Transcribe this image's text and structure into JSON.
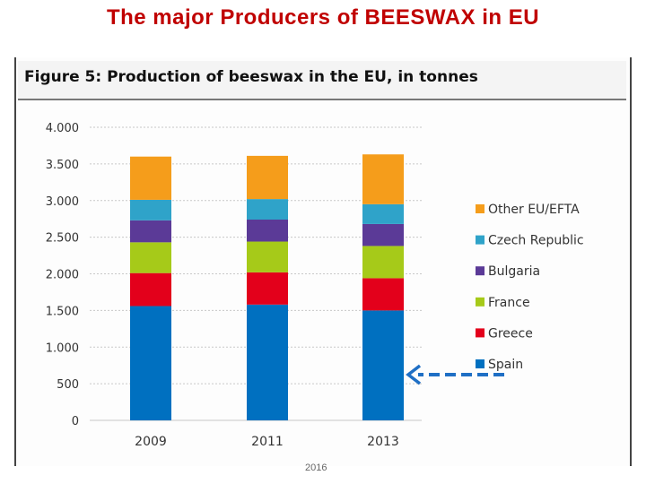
{
  "slide_title": "The major Producers of BEESWAX in EU",
  "footer_text": "2016",
  "colors": {
    "title": "#c00000",
    "spain": "#0070c0",
    "greece": "#e3001b",
    "france": "#a6ca19",
    "bulgaria": "#5b3a97",
    "czech": "#2fa3c9",
    "other": "#f59d1b",
    "arrow": "#1f6fc5"
  },
  "chart_data": {
    "type": "bar",
    "stacked": true,
    "title": "Figure 5: Production of beeswax in the EU, in tonnes",
    "categories": [
      "2009",
      "2011",
      "2013"
    ],
    "ylim": [
      0,
      4000
    ],
    "yticks": [
      0,
      500,
      1000,
      1500,
      2000,
      2500,
      3000,
      3500,
      4000
    ],
    "ytick_labels": [
      "0",
      "500",
      "1.000",
      "1.500",
      "2.000",
      "2.500",
      "3.000",
      "3.500",
      "4.000"
    ],
    "legend_position": "right",
    "series": [
      {
        "name": "Spain",
        "color": "#0070c0",
        "values": [
          1560,
          1580,
          1500
        ]
      },
      {
        "name": "Greece",
        "color": "#e3001b",
        "values": [
          450,
          440,
          440
        ]
      },
      {
        "name": "France",
        "color": "#a6ca19",
        "values": [
          420,
          420,
          440
        ]
      },
      {
        "name": "Bulgaria",
        "color": "#5b3a97",
        "values": [
          300,
          300,
          300
        ]
      },
      {
        "name": "Czech Republic",
        "color": "#2fa3c9",
        "values": [
          280,
          280,
          270
        ]
      },
      {
        "name": "Other EU/EFTA",
        "color": "#f59d1b",
        "values": [
          590,
          590,
          680
        ]
      }
    ],
    "annotation": "arrow pointing to Spain"
  }
}
